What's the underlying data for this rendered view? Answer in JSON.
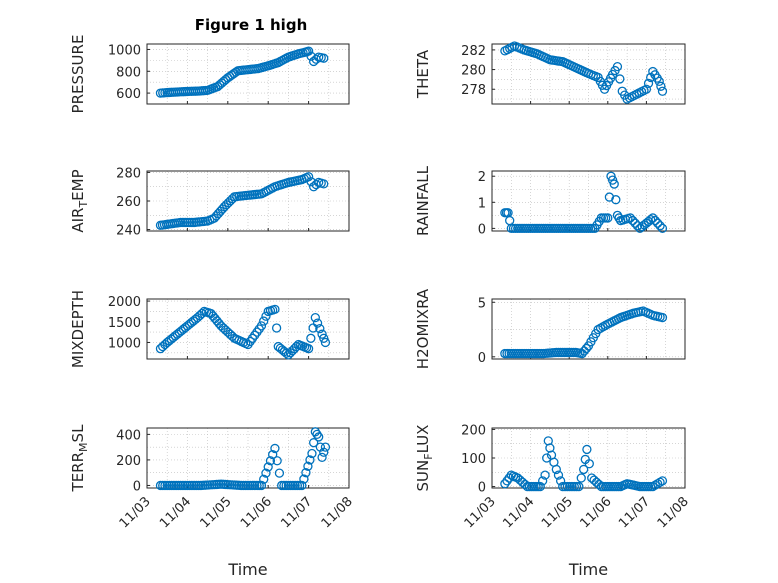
{
  "figure": {
    "title": "Figure 1 high"
  },
  "chart_data": [
    {
      "type": "scatter",
      "ylabel": "PRESSURE",
      "ylim": [
        500,
        1050
      ],
      "yticks": [
        600,
        800,
        1000
      ],
      "xlabel": "",
      "x": [
        "11/03 08:00",
        "11/03 12:00",
        "11/03 18:00",
        "11/04 00:00",
        "11/04 06:00",
        "11/04 12:00",
        "11/04 18:00",
        "11/05 00:00",
        "11/05 06:00",
        "11/05 12:00",
        "11/05 18:00",
        "11/06 00:00",
        "11/06 06:00",
        "11/06 12:00",
        "11/06 18:00",
        "11/06 22:00",
        "11/07 00:00",
        "11/07 03:00",
        "11/07 06:00",
        "11/07 09:00"
      ],
      "y": [
        600,
        605,
        610,
        615,
        618,
        625,
        660,
        740,
        805,
        815,
        825,
        850,
        880,
        930,
        960,
        975,
        985,
        890,
        930,
        920
      ],
      "grid": true
    },
    {
      "type": "scatter",
      "ylabel": "THETA",
      "ylim": [
        276.5,
        282.6
      ],
      "yticks": [
        278,
        280,
        282
      ],
      "xlabel": "",
      "x": [
        "11/03 08:00",
        "11/03 14:00",
        "11/03 20:00",
        "11/04 04:00",
        "11/04 12:00",
        "11/04 20:00",
        "11/05 04:00",
        "11/05 12:00",
        "11/05 18:00",
        "11/05 22:00",
        "11/06 03:00",
        "11/06 06:00",
        "11/06 09:00",
        "11/06 12:00",
        "11/06 18:00",
        "11/07 00:00",
        "11/07 04:00",
        "11/07 08:00",
        "11/07 10:00"
      ],
      "y": [
        281.9,
        282.4,
        282.0,
        281.6,
        281.0,
        280.8,
        280.2,
        279.6,
        279.2,
        278.0,
        279.5,
        280.3,
        277.8,
        277.0,
        277.5,
        278.0,
        279.8,
        278.8,
        277.8
      ],
      "grid": true
    },
    {
      "type": "scatter",
      "ylabel": "AIR_TEMP",
      "ylim": [
        239,
        281
      ],
      "yticks": [
        240,
        260,
        280
      ],
      "xlabel": "",
      "x": [
        "11/03 08:00",
        "11/03 14:00",
        "11/03 20:00",
        "11/04 04:00",
        "11/04 12:00",
        "11/04 16:00",
        "11/04 22:00",
        "11/05 04:00",
        "11/05 12:00",
        "11/05 20:00",
        "11/06 04:00",
        "11/06 12:00",
        "11/06 20:00",
        "11/07 00:00",
        "11/07 03:00",
        "11/07 06:00",
        "11/07 09:00"
      ],
      "y": [
        243,
        244,
        245,
        245,
        246,
        248,
        256,
        263,
        264,
        265,
        270,
        273,
        275,
        277,
        270,
        273,
        272
      ],
      "grid": true
    },
    {
      "type": "scatter",
      "ylabel": "RAINFALL",
      "ylim": [
        -0.1,
        2.2
      ],
      "yticks": [
        0,
        1,
        2
      ],
      "xlabel": "",
      "x": [
        "11/03 08:00",
        "11/03 10:00",
        "11/03 12:00",
        "11/03 20:00",
        "11/04 08:00",
        "11/04 20:00",
        "11/05 08:00",
        "11/05 16:00",
        "11/05 20:00",
        "11/06 00:00",
        "11/06 02:00",
        "11/06 04:00",
        "11/06 06:00",
        "11/06 08:00",
        "11/06 14:00",
        "11/06 20:00",
        "11/07 04:00",
        "11/07 10:00"
      ],
      "y": [
        0.6,
        0.6,
        0,
        0,
        0,
        0,
        0,
        0,
        0.4,
        0.4,
        2.0,
        1.7,
        0.5,
        0.3,
        0.4,
        0,
        0.4,
        0
      ],
      "grid": true
    },
    {
      "type": "scatter",
      "ylabel": "MIXDEPTH",
      "ylim": [
        600,
        2050
      ],
      "yticks": [
        1000,
        1500,
        2000
      ],
      "xlabel": "",
      "x": [
        "11/03 08:00",
        "11/03 12:00",
        "11/03 18:00",
        "11/04 00:00",
        "11/04 06:00",
        "11/04 10:00",
        "11/04 14:00",
        "11/04 20:00",
        "11/05 04:00",
        "11/05 12:00",
        "11/05 20:00",
        "11/06 00:00",
        "11/06 04:00",
        "11/06 06:00",
        "11/06 12:00",
        "11/06 18:00",
        "11/07 00:00",
        "11/07 04:00",
        "11/07 08:00",
        "11/07 10:00"
      ],
      "y": [
        850,
        1000,
        1200,
        1400,
        1600,
        1750,
        1700,
        1400,
        1100,
        950,
        1400,
        1750,
        1800,
        900,
        700,
        950,
        850,
        1600,
        1200,
        1000
      ],
      "grid": true
    },
    {
      "type": "scatter",
      "ylabel": "H2OMIXRA",
      "ylim": [
        -0.2,
        5.3
      ],
      "yticks": [
        0,
        5
      ],
      "xlabel": "",
      "x": [
        "11/03 08:00",
        "11/03 20:00",
        "11/04 08:00",
        "11/04 16:00",
        "11/05 04:00",
        "11/05 08:00",
        "11/05 12:00",
        "11/05 18:00",
        "11/06 00:00",
        "11/06 08:00",
        "11/06 16:00",
        "11/06 22:00",
        "11/07 04:00",
        "11/07 10:00"
      ],
      "y": [
        0.3,
        0.3,
        0.3,
        0.4,
        0.4,
        0.3,
        1.0,
        2.5,
        3.0,
        3.6,
        4.0,
        4.2,
        3.8,
        3.6
      ],
      "grid": true
    },
    {
      "type": "scatter",
      "ylabel": "TERR_MSL",
      "ylim": [
        -20,
        450
      ],
      "yticks": [
        0,
        200,
        400
      ],
      "xlabel": "Time",
      "xticks": [
        "11/03",
        "11/04",
        "11/05",
        "11/06",
        "11/07",
        "11/08"
      ],
      "x": [
        "11/03 08:00",
        "11/03 20:00",
        "11/04 08:00",
        "11/04 20:00",
        "11/05 08:00",
        "11/05 20:00",
        "11/06 04:00",
        "11/06 08:00",
        "11/06 20:00",
        "11/07 02:00",
        "11/07 04:00",
        "11/07 06:00",
        "11/07 08:00",
        "11/07 10:00"
      ],
      "y": [
        0,
        0,
        0,
        10,
        0,
        0,
        290,
        0,
        0,
        250,
        420,
        380,
        220,
        300
      ],
      "grid": true
    },
    {
      "type": "scatter",
      "ylabel": "SUN_FLUX",
      "ylim": [
        -5,
        205
      ],
      "yticks": [
        0,
        100,
        200
      ],
      "xlabel": "Time",
      "xticks": [
        "11/03",
        "11/04",
        "11/05",
        "11/06",
        "11/07",
        "11/08"
      ],
      "x": [
        "11/03 08:00",
        "11/03 12:00",
        "11/03 16:00",
        "11/03 22:00",
        "11/04 06:00",
        "11/04 09:00",
        "11/04 11:00",
        "11/04 13:00",
        "11/04 16:00",
        "11/04 20:00",
        "11/05 06:00",
        "11/05 09:00",
        "11/05 11:00",
        "11/05 14:00",
        "11/05 20:00",
        "11/06 08:00",
        "11/06 12:00",
        "11/06 20:00",
        "11/07 04:00",
        "11/07 10:00"
      ],
      "y": [
        10,
        40,
        30,
        0,
        0,
        40,
        160,
        110,
        60,
        0,
        0,
        60,
        130,
        30,
        0,
        0,
        10,
        0,
        0,
        20
      ],
      "grid": true
    }
  ]
}
